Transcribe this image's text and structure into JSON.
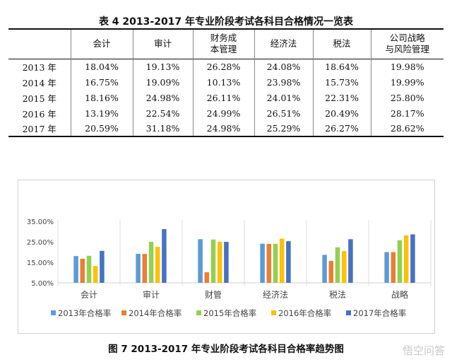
{
  "table": {
    "title": "表 4   2013-2017 年专业阶段考试各科目合格情况一览表",
    "headers": [
      "",
      "会计",
      "审计",
      "财务成\n本管理",
      "经济法",
      "税法",
      "公司战略\n与风险管理"
    ],
    "rows": [
      {
        "year": "2013 年",
        "values": [
          "18.04%",
          "19.13%",
          "26.28%",
          "24.08%",
          "18.64%",
          "19.98%"
        ]
      },
      {
        "year": "2014 年",
        "values": [
          "16.75%",
          "19.09%",
          "10.13%",
          "23.98%",
          "15.73%",
          "19.99%"
        ]
      },
      {
        "year": "2015 年",
        "values": [
          "18.16%",
          "24.98%",
          "26.11%",
          "24.01%",
          "22.31%",
          "25.80%"
        ]
      },
      {
        "year": "2016 年",
        "values": [
          "13.19%",
          "22.54%",
          "24.99%",
          "26.51%",
          "20.49%",
          "28.17%"
        ]
      },
      {
        "year": "2017 年",
        "values": [
          "20.59%",
          "31.18%",
          "24.98%",
          "25.29%",
          "26.27%",
          "28.62%"
        ]
      }
    ]
  },
  "chart_data": {
    "type": "bar",
    "categories": [
      "会计",
      "审计",
      "财管",
      "经济法",
      "税法",
      "战略"
    ],
    "series": [
      {
        "name": "2013年合格率",
        "color": "#5B9BD5",
        "values": [
          18.04,
          19.13,
          26.28,
          24.08,
          18.64,
          19.98
        ]
      },
      {
        "name": "2014年合格率",
        "color": "#ED7D31",
        "values": [
          16.75,
          19.09,
          10.13,
          23.98,
          15.73,
          19.99
        ]
      },
      {
        "name": "2015年合格率",
        "color": "#92D050",
        "values": [
          18.16,
          24.98,
          26.11,
          24.01,
          22.31,
          25.8
        ]
      },
      {
        "name": "2016年合格率",
        "color": "#FFC000",
        "values": [
          13.19,
          22.54,
          24.99,
          26.51,
          20.49,
          28.17
        ]
      },
      {
        "name": "2017年合格率",
        "color": "#4472C4",
        "values": [
          20.59,
          31.18,
          24.98,
          25.29,
          26.27,
          28.62
        ]
      }
    ],
    "y_ticks": [
      "5.00%",
      "15.00%",
      "25.00%",
      "35.00%"
    ],
    "y_tick_values": [
      5,
      15,
      25,
      35
    ],
    "ylim": [
      5,
      35
    ],
    "title": "",
    "xlabel": "",
    "ylabel": "",
    "grid": false,
    "category_separators": true,
    "legend_position": "bottom"
  },
  "caption": "图 7   2013-2017 年专业阶段考试各科目合格率趋势图",
  "watermark": "悟空问答"
}
